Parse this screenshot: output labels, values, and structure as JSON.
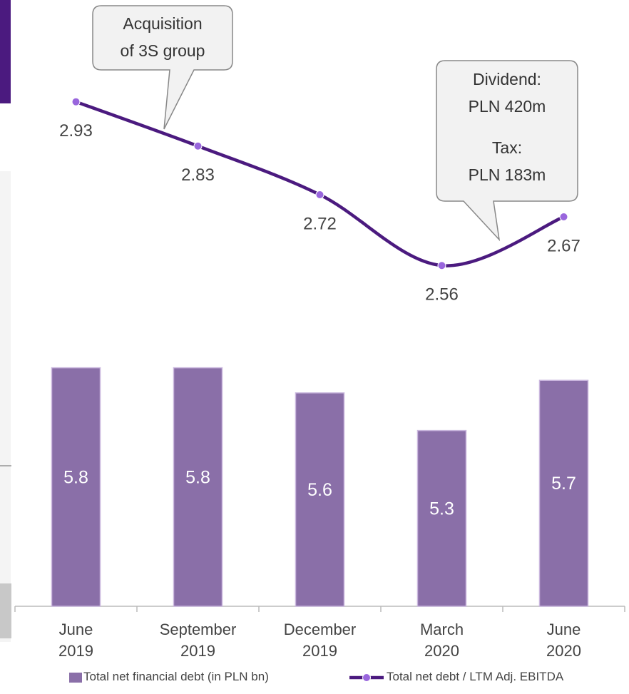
{
  "chart_data": {
    "type": "bar",
    "categories": [
      "June\n2019",
      "September\n2019",
      "December\n2019",
      "March\n2020",
      "June\n2020"
    ],
    "series": [
      {
        "name": "Total net financial debt (in PLN bn)",
        "type": "bar",
        "color": "#8a6fa8",
        "values": [
          5.8,
          5.8,
          5.6,
          5.3,
          5.7
        ]
      },
      {
        "name": "Total net debt / LTM Adj. EBITDA",
        "type": "line",
        "axis": "y2",
        "color": "#4b1a7f",
        "marker_color": "#9966dd",
        "values": [
          2.93,
          2.83,
          2.72,
          2.56,
          2.67
        ]
      }
    ],
    "ylim": [
      3.9,
      8.73
    ],
    "y2lim": [
      1.79,
      3.16
    ],
    "annotations": [
      {
        "text": "Acquisition\nof 3S group"
      },
      {
        "text": "Dividend:\nPLN 420m"
      },
      {
        "text": "Tax:\nPLN 183m"
      }
    ]
  }
}
